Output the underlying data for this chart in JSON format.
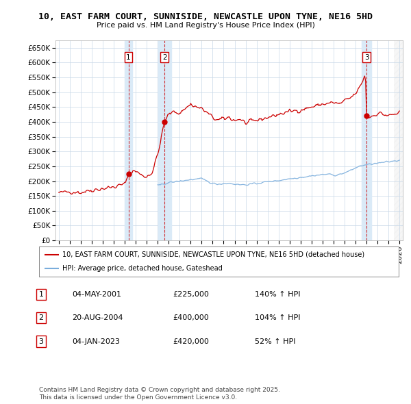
{
  "title_line1": "10, EAST FARM COURT, SUNNISIDE, NEWCASTLE UPON TYNE, NE16 5HD",
  "title_line2": "Price paid vs. HM Land Registry's House Price Index (HPI)",
  "ylim": [
    0,
    675000
  ],
  "xlim_start": 1994.7,
  "xlim_end": 2026.3,
  "yticks": [
    0,
    50000,
    100000,
    150000,
    200000,
    250000,
    300000,
    350000,
    400000,
    450000,
    500000,
    550000,
    600000,
    650000
  ],
  "ytick_labels": [
    "£0",
    "£50K",
    "£100K",
    "£150K",
    "£200K",
    "£250K",
    "£300K",
    "£350K",
    "£400K",
    "£450K",
    "£500K",
    "£550K",
    "£600K",
    "£650K"
  ],
  "xticks": [
    1995,
    1996,
    1997,
    1998,
    1999,
    2000,
    2001,
    2002,
    2003,
    2004,
    2005,
    2006,
    2007,
    2008,
    2009,
    2010,
    2011,
    2012,
    2013,
    2014,
    2015,
    2016,
    2017,
    2018,
    2019,
    2020,
    2021,
    2022,
    2023,
    2024,
    2025,
    2026
  ],
  "sale_dates": [
    2001.34,
    2004.63,
    2023.01
  ],
  "sale_prices": [
    225000,
    400000,
    420000
  ],
  "sale_labels": [
    "1",
    "2",
    "3"
  ],
  "hpi_color": "#7aaddc",
  "price_color": "#cc0000",
  "background_color": "#ffffff",
  "grid_color": "#c8d8e8",
  "shade_color": "#daeaf7",
  "hatch_color": "#e0e0e0",
  "legend_price_label": "10, EAST FARM COURT, SUNNISIDE, NEWCASTLE UPON TYNE, NE16 5HD (detached house)",
  "legend_hpi_label": "HPI: Average price, detached house, Gateshead",
  "table_data": [
    [
      "1",
      "04-MAY-2001",
      "£225,000",
      "140% ↑ HPI"
    ],
    [
      "2",
      "20-AUG-2004",
      "£400,000",
      "104% ↑ HPI"
    ],
    [
      "3",
      "04-JAN-2023",
      "£420,000",
      "52% ↑ HPI"
    ]
  ],
  "footnote": "Contains HM Land Registry data © Crown copyright and database right 2025.\nThis data is licensed under the Open Government Licence v3.0."
}
